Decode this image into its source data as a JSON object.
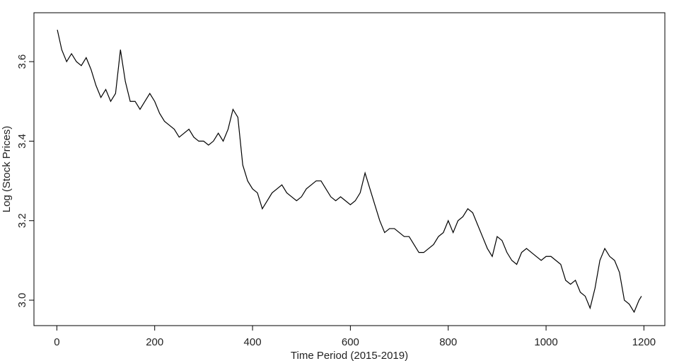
{
  "chart_data": {
    "type": "line",
    "x_label": "Time Period (2015-2019)",
    "y_label": "Log (Stock Prices)",
    "x": [
      1,
      10,
      20,
      30,
      40,
      50,
      60,
      70,
      80,
      90,
      100,
      110,
      120,
      130,
      140,
      150,
      160,
      170,
      180,
      190,
      200,
      210,
      220,
      230,
      240,
      250,
      260,
      270,
      280,
      290,
      300,
      310,
      320,
      330,
      340,
      350,
      360,
      370,
      380,
      390,
      400,
      410,
      420,
      430,
      440,
      450,
      460,
      470,
      480,
      490,
      500,
      510,
      520,
      530,
      540,
      550,
      560,
      570,
      580,
      590,
      600,
      610,
      620,
      630,
      640,
      650,
      660,
      670,
      680,
      690,
      700,
      710,
      720,
      730,
      740,
      750,
      760,
      770,
      780,
      790,
      800,
      810,
      820,
      830,
      840,
      850,
      860,
      870,
      880,
      890,
      900,
      910,
      920,
      930,
      940,
      950,
      960,
      970,
      980,
      990,
      1000,
      1010,
      1020,
      1030,
      1040,
      1050,
      1060,
      1070,
      1080,
      1090,
      1100,
      1110,
      1120,
      1130,
      1140,
      1150,
      1160,
      1170,
      1180,
      1190,
      1195
    ],
    "series": [
      {
        "color": "#000000",
        "values": [
          3.68,
          3.63,
          3.6,
          3.62,
          3.6,
          3.59,
          3.61,
          3.58,
          3.54,
          3.51,
          3.53,
          3.5,
          3.52,
          3.63,
          3.55,
          3.5,
          3.5,
          3.48,
          3.5,
          3.52,
          3.5,
          3.47,
          3.45,
          3.44,
          3.43,
          3.41,
          3.42,
          3.43,
          3.41,
          3.4,
          3.4,
          3.39,
          3.4,
          3.42,
          3.4,
          3.43,
          3.48,
          3.46,
          3.34,
          3.3,
          3.28,
          3.27,
          3.23,
          3.25,
          3.27,
          3.28,
          3.29,
          3.27,
          3.26,
          3.25,
          3.26,
          3.28,
          3.29,
          3.3,
          3.3,
          3.28,
          3.26,
          3.25,
          3.26,
          3.25,
          3.24,
          3.25,
          3.27,
          3.32,
          3.28,
          3.24,
          3.2,
          3.17,
          3.18,
          3.18,
          3.17,
          3.16,
          3.16,
          3.14,
          3.12,
          3.12,
          3.13,
          3.14,
          3.16,
          3.17,
          3.2,
          3.17,
          3.2,
          3.21,
          3.23,
          3.22,
          3.19,
          3.16,
          3.13,
          3.11,
          3.16,
          3.15,
          3.12,
          3.1,
          3.09,
          3.12,
          3.13,
          3.12,
          3.11,
          3.1,
          3.11,
          3.11,
          3.1,
          3.09,
          3.05,
          3.04,
          3.05,
          3.02,
          3.01,
          2.98,
          3.03,
          3.1,
          3.13,
          3.11,
          3.1,
          3.07,
          3.0,
          2.99,
          2.97,
          3.0,
          3.01
        ]
      }
    ],
    "xlim": [
      -46.8,
      1242.8
    ],
    "xticks": [
      0,
      200,
      400,
      600,
      800,
      1000,
      1200
    ],
    "ylim": [
      2.936,
      3.723
    ],
    "yticks": [
      {
        "value": 3.0,
        "label": "3.0"
      },
      {
        "value": 3.2,
        "label": "3.2"
      },
      {
        "value": 3.4,
        "label": "3.4"
      },
      {
        "value": 3.6,
        "label": "3.6"
      }
    ]
  }
}
